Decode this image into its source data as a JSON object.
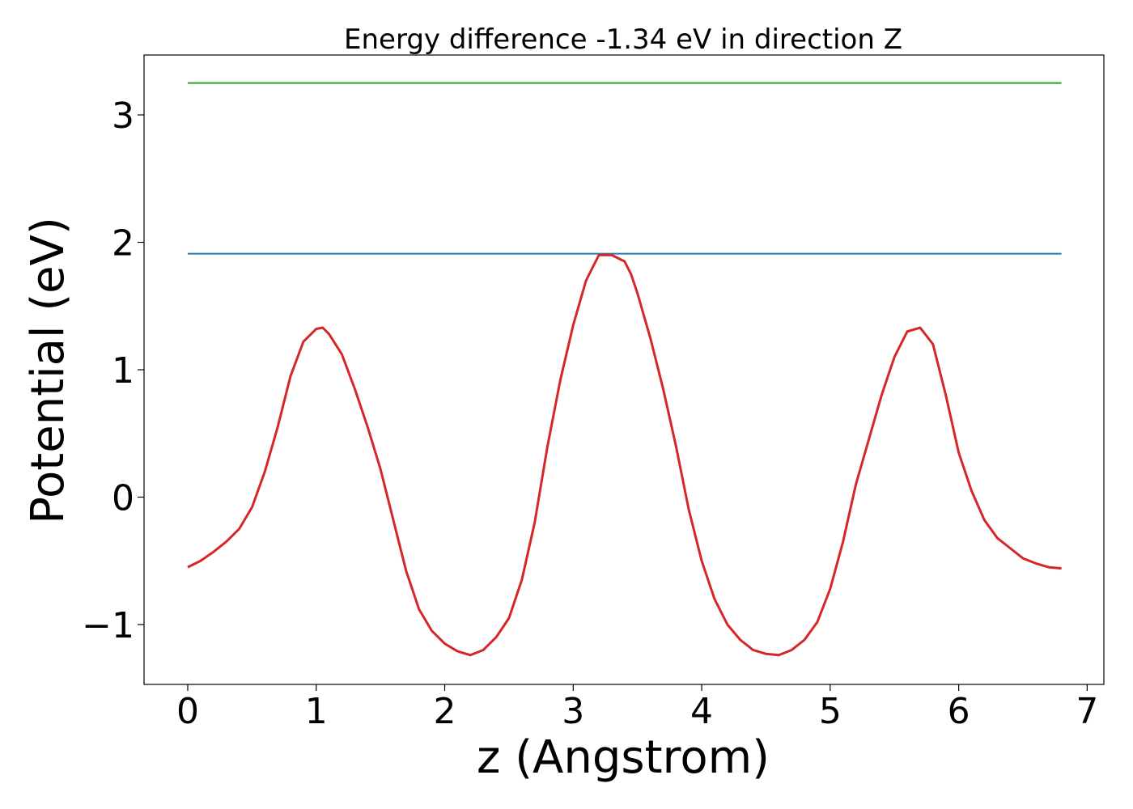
{
  "chart_data": {
    "type": "line",
    "title": "Energy difference -1.34 eV in direction Z",
    "xlabel": "z (Angstrom)",
    "ylabel": "Potential (eV)",
    "xlim": [
      -0.34,
      7.13
    ],
    "ylim": [
      -1.47,
      3.47
    ],
    "xticks": [
      0,
      1,
      2,
      3,
      4,
      5,
      6,
      7
    ],
    "xtick_labels": [
      "0",
      "1",
      "2",
      "3",
      "4",
      "5",
      "6",
      "7"
    ],
    "yticks": [
      -1,
      0,
      1,
      2,
      3
    ],
    "ytick_labels": [
      "−1",
      "0",
      "1",
      "2",
      "3"
    ],
    "grid": false,
    "series": [
      {
        "color": "#2ca02c",
        "x": [
          0,
          6.8
        ],
        "y": [
          3.25,
          3.25
        ]
      },
      {
        "color": "#1f77b4",
        "x": [
          0,
          6.8
        ],
        "y": [
          1.91,
          1.91
        ]
      },
      {
        "color": "#d62728",
        "x": [
          0.0,
          0.1,
          0.2,
          0.3,
          0.4,
          0.5,
          0.6,
          0.7,
          0.8,
          0.9,
          1.0,
          1.05,
          1.1,
          1.2,
          1.3,
          1.4,
          1.5,
          1.6,
          1.7,
          1.8,
          1.9,
          2.0,
          2.1,
          2.2,
          2.3,
          2.4,
          2.5,
          2.6,
          2.7,
          2.8,
          2.9,
          3.0,
          3.1,
          3.2,
          3.3,
          3.4,
          3.45,
          3.5,
          3.6,
          3.7,
          3.8,
          3.9,
          4.0,
          4.1,
          4.2,
          4.3,
          4.4,
          4.5,
          4.6,
          4.65,
          4.7,
          4.8,
          4.9,
          5.0,
          5.1,
          5.2,
          5.3,
          5.4,
          5.5,
          5.6,
          5.7,
          5.8,
          5.9,
          6.0,
          6.1,
          6.2,
          6.3,
          6.4,
          6.5,
          6.6,
          6.7,
          6.8
        ],
        "y": [
          -0.55,
          -0.5,
          -0.43,
          -0.35,
          -0.25,
          -0.08,
          0.2,
          0.55,
          0.95,
          1.22,
          1.32,
          1.33,
          1.28,
          1.12,
          0.85,
          0.55,
          0.22,
          -0.18,
          -0.58,
          -0.88,
          -1.05,
          -1.15,
          -1.21,
          -1.24,
          -1.2,
          -1.1,
          -0.95,
          -0.65,
          -0.2,
          0.4,
          0.92,
          1.35,
          1.7,
          1.9,
          1.9,
          1.85,
          1.75,
          1.6,
          1.25,
          0.85,
          0.4,
          -0.1,
          -0.5,
          -0.8,
          -1.0,
          -1.12,
          -1.2,
          -1.23,
          -1.24,
          -1.22,
          -1.2,
          -1.12,
          -0.98,
          -0.72,
          -0.35,
          0.1,
          0.45,
          0.8,
          1.1,
          1.3,
          1.33,
          1.2,
          0.8,
          0.35,
          0.05,
          -0.18,
          -0.32,
          -0.4,
          -0.48,
          -0.52,
          -0.55,
          -0.56
        ]
      }
    ]
  }
}
